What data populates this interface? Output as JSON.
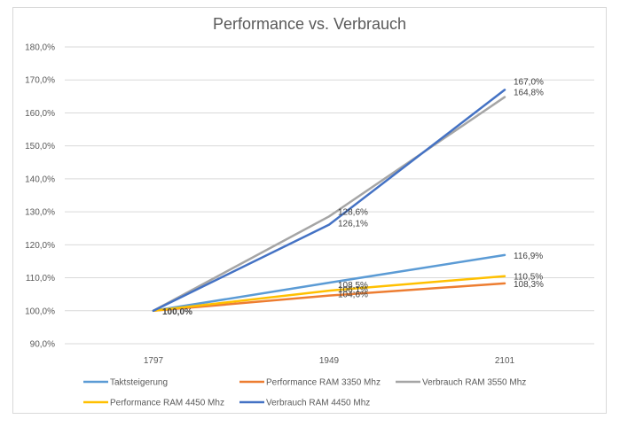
{
  "chart_data": {
    "type": "line",
    "title": "Performance vs. Verbrauch",
    "xlabel": "",
    "ylabel": "",
    "categories": [
      "1797",
      "1949",
      "2101"
    ],
    "y_ticks": [
      "90,0%",
      "100,0%",
      "110,0%",
      "120,0%",
      "130,0%",
      "140,0%",
      "150,0%",
      "160,0%",
      "170,0%",
      "180,0%"
    ],
    "ylim": [
      90,
      180
    ],
    "grid": true,
    "legend_position": "bottom",
    "series": [
      {
        "name": "Taktsteigerung",
        "color": "#5B9BD5",
        "values": [
          100.0,
          108.5,
          116.9
        ],
        "labels": [
          "",
          "108,5%",
          "116,9%"
        ]
      },
      {
        "name": "Performance RAM 3350 Mhz",
        "color": "#ED7D31",
        "values": [
          100.0,
          104.6,
          108.3
        ],
        "labels": [
          "",
          "104,6%",
          "108,3%"
        ]
      },
      {
        "name": "Verbrauch RAM 3550 Mhz",
        "color": "#A5A5A5",
        "values": [
          100.0,
          128.6,
          164.8
        ],
        "labels": [
          "",
          "128,6%",
          "164,8%"
        ]
      },
      {
        "name": "Performance RAM 4450 Mhz",
        "color": "#FFC000",
        "values": [
          100.0,
          106.1,
          110.5
        ],
        "labels": [
          "",
          "106,1%",
          "110,5%"
        ]
      },
      {
        "name": "Verbrauch RAM 4450 Mhz",
        "color": "#4472C4",
        "values": [
          100.0,
          126.1,
          167.0
        ],
        "labels": [
          "100,0%",
          "126,1%",
          "167,0%"
        ]
      }
    ]
  }
}
